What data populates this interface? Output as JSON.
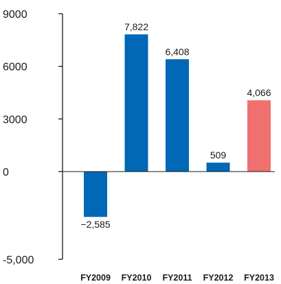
{
  "chart_data": {
    "type": "bar",
    "categories": [
      "FY2009",
      "FY2010",
      "FY2011",
      "FY2012",
      "FY2013"
    ],
    "values": [
      -2585,
      7822,
      6408,
      509,
      4066
    ],
    "value_labels": [
      "−2,585",
      "7,822",
      "6,408",
      "509",
      "4,066"
    ],
    "ylim": [
      -5000,
      9000
    ],
    "yticks": [
      -5000,
      0,
      3000,
      6000,
      9000
    ],
    "ytick_labels": [
      "-5,000",
      "0",
      "3000",
      "6000",
      "9000"
    ],
    "title": "",
    "xlabel": "",
    "ylabel": "",
    "grid": false,
    "colors": {
      "default": "#0068b7",
      "highlight": "#f07070",
      "axis": "#1a1a1a"
    },
    "highlight_index": 4
  }
}
